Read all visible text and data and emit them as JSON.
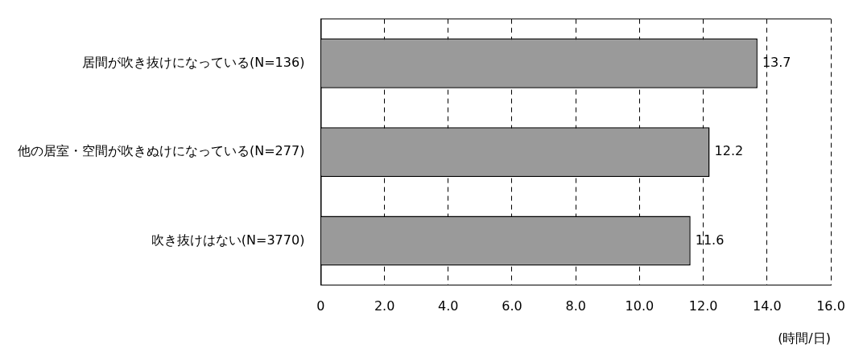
{
  "chart_data": {
    "type": "bar",
    "orientation": "horizontal",
    "categories": [
      "居間が吹き抜けになっている(N=136)",
      "他の居室・空間が吹きぬけになっている(N=277)",
      "吹き抜けはない(N=3770)"
    ],
    "values": [
      13.7,
      12.2,
      11.6
    ],
    "color": "#9a9a9a",
    "xlim": [
      0,
      16
    ],
    "xticks": [
      0,
      {
        "value": 2,
        "label": "2.0"
      },
      {
        "value": 4,
        "label": "4.0"
      },
      {
        "value": 6,
        "label": "6.0"
      },
      {
        "value": 8,
        "label": "8.0"
      },
      {
        "value": 10,
        "label": "10.0"
      },
      {
        "value": 12,
        "label": "12.0"
      },
      {
        "value": 14,
        "label": "14.0"
      },
      {
        "value": 16,
        "label": "16.0"
      }
    ],
    "xlabel": "(時間/日)",
    "grid": "x",
    "data_labels": true,
    "legend": false
  }
}
